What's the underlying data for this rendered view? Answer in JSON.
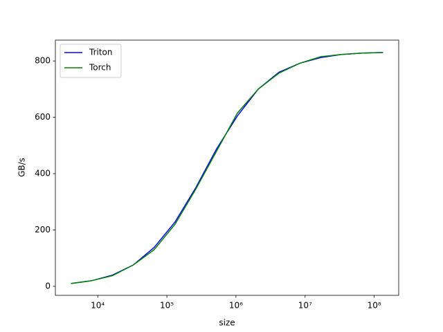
{
  "chart_data": {
    "type": "line",
    "x_label": "size",
    "y_label": "GB/s",
    "x": [
      4096,
      8192,
      16384,
      32768,
      65536,
      131072,
      262144,
      524288,
      1048576,
      2097152,
      4194304,
      8388608,
      16777216,
      33554432,
      67108864,
      134217728
    ],
    "series": [
      {
        "name": "Triton",
        "color": "#0000ff",
        "values": [
          10,
          20,
          40,
          76,
          138,
          228,
          350,
          488,
          605,
          700,
          760,
          792,
          812,
          823,
          828,
          830
        ]
      },
      {
        "name": "Torch",
        "color": "#008000",
        "values": [
          10,
          20,
          38,
          76,
          130,
          220,
          345,
          480,
          615,
          700,
          757,
          792,
          815,
          823,
          828,
          830
        ]
      }
    ],
    "xscale": "log",
    "xlim": [
      2440,
      226000000
    ],
    "ylim": [
      -32,
      874
    ],
    "xticks": [
      {
        "value": 10000,
        "label": "10⁴"
      },
      {
        "value": 100000,
        "label": "10⁵"
      },
      {
        "value": 1000000,
        "label": "10⁶"
      },
      {
        "value": 10000000,
        "label": "10⁷"
      },
      {
        "value": 100000000,
        "label": "10⁸"
      }
    ],
    "yticks": [
      0,
      200,
      400,
      600,
      800
    ],
    "legend": "upper left"
  }
}
